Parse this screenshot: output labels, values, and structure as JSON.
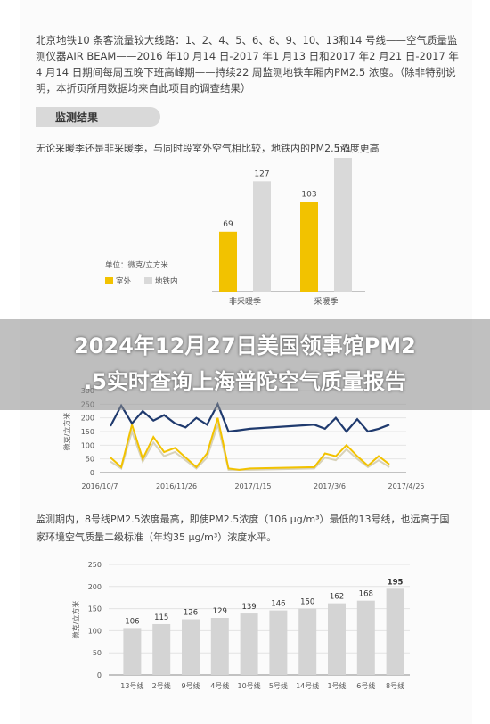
{
  "intro_text": "北京地铁10 条客流量较大线路：1、2、4、5、6、8、9、10、13和14 号线——空气质量监测仪器AIR BEAM——2016 年10 月14 日-2017 年1 月13 日和2017 年2 月21 日-2017 年4 月14 日期间每周五晚下班高峰期——持续22 周监测地铁车厢内PM2.5 浓度。（除非特别说明，本折页所用数据均来自此项目的调查结果）",
  "section_title": "监测结果",
  "finding_1": "无论采暖季还是非采暖季，与同时段室外空气相比较，地铁内的PM2.5浓度更高",
  "finding_2_line1": "监测期内，8号线PM2.5浓度最高，即使PM2.5浓度（106 μg/m³）最低的13号线，也远高于国",
  "finding_2_line2": "家环境空气质量二级标准（年均35 μg/m³）浓度水平。",
  "overlay_title_line1": "2024年12月27日美国领事馆PM2",
  "overlay_title_line2": ".5实时查询上海普陀空气质量报告",
  "colors": {
    "outdoor": "#f2c200",
    "subway": "#d9d9d9",
    "dark_line": "#1f3a6e",
    "bar_grey": "#d4d4d4"
  },
  "chart_data": [
    {
      "type": "bar",
      "categories": [
        "非采暖季",
        "采暖季"
      ],
      "series": [
        {
          "name": "室外",
          "values": [
            69,
            103
          ]
        },
        {
          "name": "地铁内",
          "values": [
            127,
            154
          ]
        }
      ],
      "unit_label": "单位：微克/立方米",
      "legend_placement": "left"
    },
    {
      "type": "line",
      "ylabel": "微克/立方米",
      "x_ticks": [
        "2016/10/7",
        "2016/11/26",
        "2017/1/15",
        "2017/3/6",
        "2017/4/25"
      ],
      "y_ticks": [
        0,
        50,
        100,
        150,
        200,
        250,
        300
      ],
      "ylim": [
        0,
        300
      ],
      "series": [
        {
          "name": "dark",
          "x": [
            "2016/10/14",
            "2016/10/21",
            "2016/10/28",
            "2016/11/4",
            "2016/11/11",
            "2016/11/18",
            "2016/11/25",
            "2016/12/2",
            "2016/12/9",
            "2016/12/16",
            "2016/12/23",
            "2016/12/30",
            "2017/1/6",
            "2017/1/13",
            "2017/2/24",
            "2017/3/3",
            "2017/3/10",
            "2017/3/17",
            "2017/3/24",
            "2017/3/31",
            "2017/4/7",
            "2017/4/14"
          ],
          "values": [
            170,
            245,
            180,
            225,
            190,
            210,
            180,
            165,
            200,
            175,
            250,
            150,
            155,
            160,
            175,
            160,
            200,
            150,
            195,
            150,
            160,
            175
          ]
        },
        {
          "name": "yellow",
          "x": [
            "2016/10/14",
            "2016/10/21",
            "2016/10/28",
            "2016/11/4",
            "2016/11/11",
            "2016/11/18",
            "2016/11/25",
            "2016/12/2",
            "2016/12/9",
            "2016/12/16",
            "2016/12/23",
            "2016/12/30",
            "2017/1/6",
            "2017/1/13",
            "2017/2/24",
            "2017/3/3",
            "2017/3/10",
            "2017/3/17",
            "2017/3/24",
            "2017/3/31",
            "2017/4/7",
            "2017/4/14"
          ],
          "values": [
            55,
            20,
            175,
            50,
            130,
            75,
            90,
            55,
            20,
            70,
            200,
            15,
            10,
            15,
            20,
            70,
            60,
            100,
            60,
            25,
            60,
            30
          ]
        },
        {
          "name": "light",
          "x": [
            "2016/10/14",
            "2016/10/21",
            "2016/10/28",
            "2016/11/4",
            "2016/11/11",
            "2016/11/18",
            "2016/11/25",
            "2016/12/2",
            "2016/12/9",
            "2016/12/16",
            "2016/12/23",
            "2016/12/30",
            "2017/1/6",
            "2017/1/13",
            "2017/2/24",
            "2017/3/3",
            "2017/3/10",
            "2017/3/17",
            "2017/3/24",
            "2017/3/31",
            "2017/4/7",
            "2017/4/14"
          ],
          "values": [
            40,
            15,
            150,
            40,
            110,
            60,
            75,
            45,
            15,
            55,
            175,
            10,
            10,
            10,
            15,
            55,
            45,
            85,
            50,
            20,
            45,
            20
          ]
        }
      ]
    },
    {
      "type": "bar",
      "ylabel": "微克/立方米",
      "categories": [
        "13号线",
        "2号线",
        "9号线",
        "4号线",
        "10号线",
        "5号线",
        "14号线",
        "1号线",
        "6号线",
        "8号线"
      ],
      "values": [
        106,
        115,
        126,
        129,
        139,
        146,
        150,
        162,
        168,
        195
      ],
      "y_ticks": [
        0,
        50,
        100,
        150,
        200,
        250
      ],
      "ylim": [
        0,
        250
      ]
    }
  ]
}
